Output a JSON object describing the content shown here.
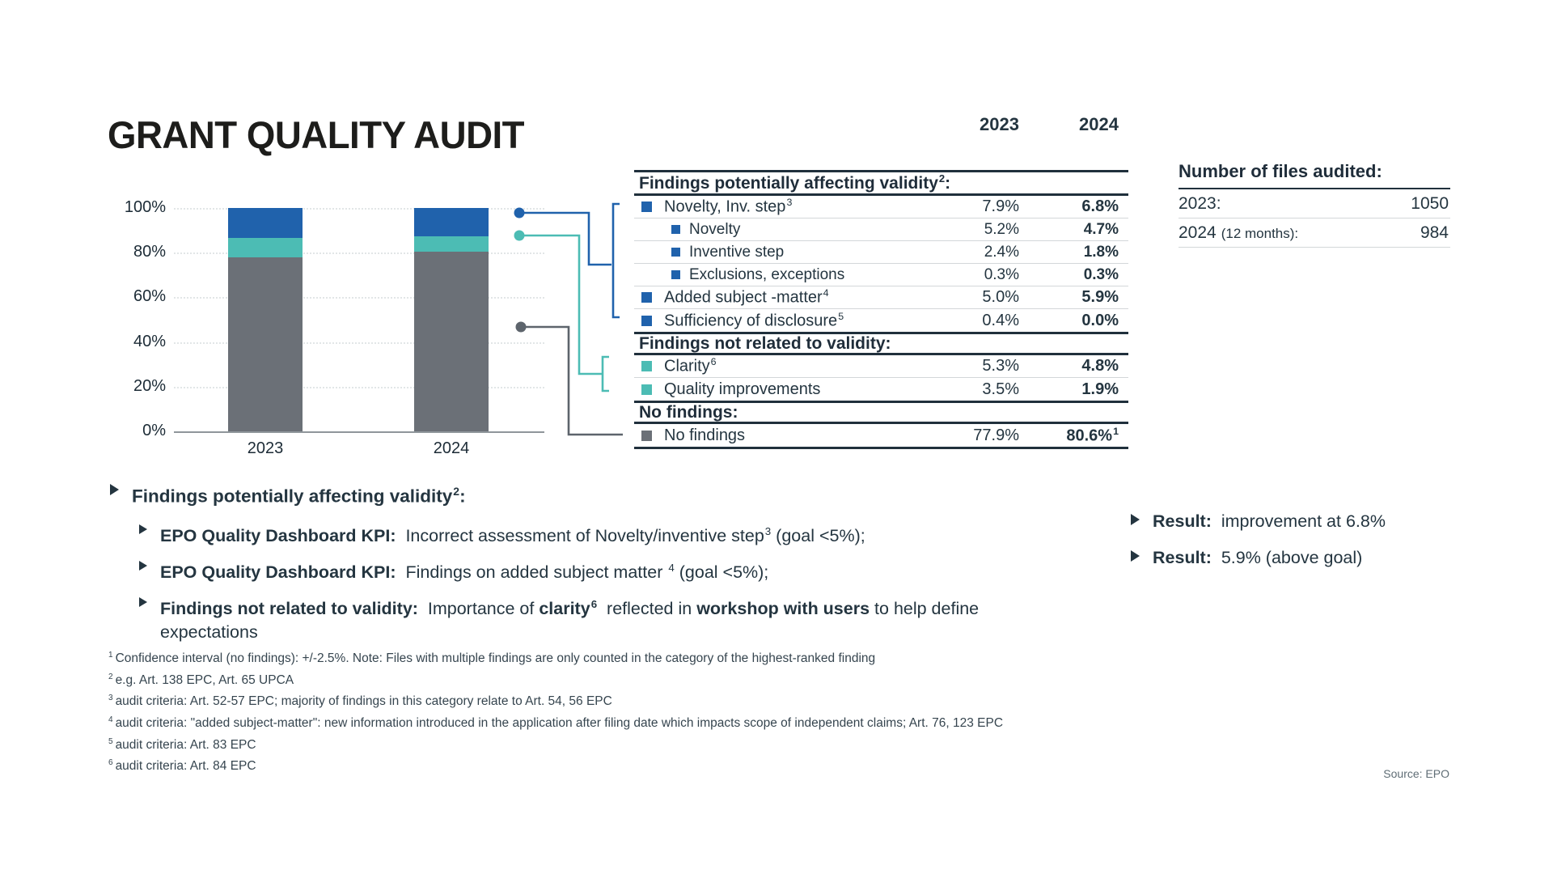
{
  "slide": {
    "title": "GRANT QUALITY AUDIT",
    "source": "Source: EPO"
  },
  "colors": {
    "blue": "#2062ac",
    "teal": "#4cbcb4",
    "gray": "#6b7077",
    "gray2": "#5d646c",
    "ink": "#20303c",
    "ruleThin": "#d3d7d9"
  },
  "chart_data": {
    "type": "bar",
    "stacked": true,
    "categories": [
      "2023",
      "2024"
    ],
    "series": [
      {
        "name": "No findings",
        "color": "#6b7077",
        "values": [
          77.9,
          80.6
        ]
      },
      {
        "name": "Findings not related to validity (Clarity + Quality improvements)",
        "color": "#4cbcb4",
        "values": [
          8.8,
          6.7
        ]
      },
      {
        "name": "Findings potentially affecting validity",
        "color": "#2062ac",
        "values": [
          13.3,
          12.7
        ]
      }
    ],
    "ylim": [
      0,
      100
    ],
    "yticks": [
      {
        "label": "100%",
        "value": 100
      },
      {
        "label": "80%",
        "value": 80
      },
      {
        "label": "60%",
        "value": 60
      },
      {
        "label": "40%",
        "value": 40
      },
      {
        "label": "20%",
        "value": 20
      },
      {
        "label": "0%",
        "value": 0
      }
    ],
    "grid": "dotted-horizontal",
    "legend": "none",
    "title": ""
  },
  "findings_table": {
    "col_headers": [
      "2023",
      "2024"
    ],
    "rows": [
      {
        "kind": "section",
        "label": "Findings potentially affecting validity",
        "sup": "2",
        "after": ":"
      },
      {
        "kind": "item",
        "indent": 0,
        "bullet": "#2062ac",
        "label": "Novelty, Inv. step",
        "sup": "3",
        "v2023": "7.9%",
        "v2024": "6.8%"
      },
      {
        "kind": "item",
        "indent": 1,
        "bullet": "#2062ac",
        "label": "Novelty",
        "v2023": "5.2%",
        "v2024": "4.7%"
      },
      {
        "kind": "item",
        "indent": 1,
        "bullet": "#2062ac",
        "label": "Inventive step",
        "v2023": "2.4%",
        "v2024": "1.8%"
      },
      {
        "kind": "item",
        "indent": 1,
        "bullet": "#2062ac",
        "label": "Exclusions, exceptions",
        "v2023": "0.3%",
        "v2024": "0.3%"
      },
      {
        "kind": "item",
        "indent": 0,
        "bullet": "#2062ac",
        "label": "Added subject -matter",
        "sup": "4",
        "v2023": "5.0%",
        "v2024": "5.9%"
      },
      {
        "kind": "item",
        "indent": 0,
        "bullet": "#2062ac",
        "label": "Sufficiency of disclosure",
        "sup": "5",
        "v2023": "0.4%",
        "v2024": "0.0%"
      },
      {
        "kind": "section",
        "label": "Findings not related to validity:",
        "sup": "",
        "after": ""
      },
      {
        "kind": "item",
        "indent": 0,
        "bullet": "#4cbcb4",
        "label": "Clarity",
        "sup": "6",
        "v2023": "5.3%",
        "v2024": "4.8%"
      },
      {
        "kind": "item",
        "indent": 0,
        "bullet": "#4cbcb4",
        "label": "Quality improvements",
        "v2023": "3.5%",
        "v2024": "1.9%"
      },
      {
        "kind": "section",
        "label": "No findings:",
        "sup": "",
        "after": ""
      },
      {
        "kind": "item",
        "indent": 0,
        "bullet": "#6b7077",
        "label": "No findings",
        "v2023": "77.9%",
        "v2024": "80.6%",
        "v2024sup": "1",
        "last": true
      }
    ]
  },
  "files_audited": {
    "title": "Number of files audited:",
    "rows": [
      {
        "label": "2023:",
        "note": "",
        "value": "1050"
      },
      {
        "label": "2024",
        "note": "(12 months):",
        "value": "984"
      }
    ]
  },
  "bullets": [
    {
      "level": 1,
      "segments": [
        {
          "text": "Findings potentially affecting validity",
          "bold": true
        },
        {
          "sup": "2",
          "bold": true
        },
        {
          "text": ":",
          "bold": true
        }
      ]
    },
    {
      "level": 2,
      "segments": [
        {
          "text": "EPO Quality Dashboard KPI:",
          "bold": true
        },
        {
          "text": "  Incorrect assessment of Novelty/inventive step"
        },
        {
          "sup": "3"
        },
        {
          "text": " (goal <5%);"
        }
      ]
    },
    {
      "level": 2,
      "segments": [
        {
          "text": "EPO Quality Dashboard KPI:",
          "bold": true
        },
        {
          "text": "  Findings on added subject matter "
        },
        {
          "sup": "4"
        },
        {
          "text": " (goal <5%);"
        }
      ]
    },
    {
      "level": 2,
      "segments": [
        {
          "text": "Findings not related to validity:",
          "bold": true
        },
        {
          "text": "  Importance of "
        },
        {
          "text": "clarity",
          "bold": true
        },
        {
          "sup": "6",
          "bold": true
        },
        {
          "text": "  reflected in "
        },
        {
          "text": "workshop with users",
          "bold": true
        },
        {
          "text": " to help define expectations"
        }
      ]
    }
  ],
  "results": [
    {
      "segments": [
        {
          "text": "Result:",
          "bold": true
        },
        {
          "text": "  improvement at 6.8%"
        }
      ]
    },
    {
      "segments": [
        {
          "text": "Result:",
          "bold": true
        },
        {
          "text": "  5.9% (above goal)"
        }
      ]
    }
  ],
  "footnotes": [
    {
      "sup": "1",
      "text": "Confidence interval (no findings): +/-2.5%. Note: Files with multiple findings are only counted in the category of the highest-ranked finding"
    },
    {
      "sup": "2",
      "text": "e.g. Art. 138 EPC, Art. 65 UPCA"
    },
    {
      "sup": "3",
      "text": "audit criteria: Art. 52-57 EPC; majority of findings in this category relate to Art. 54, 56 EPC"
    },
    {
      "sup": "4",
      "text": "audit criteria: \"added subject-matter\": new information introduced in the application after filing date which impacts scope of independent claims; Art. 76, 123 EPC"
    },
    {
      "sup": "5",
      "text": "audit criteria: Art. 83 EPC"
    },
    {
      "sup": "6",
      "text": "audit criteria: Art. 84 EPC"
    }
  ]
}
